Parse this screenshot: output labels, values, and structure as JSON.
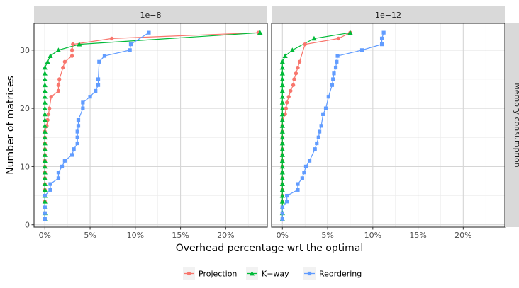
{
  "chart_data": {
    "type": "line",
    "xlabel": "Overhead percentage wrt the optimal",
    "ylabel": "Number of matrices",
    "row_strip": "Memory consumption",
    "xlim": [
      -1.2,
      24.6
    ],
    "ylim": [
      -0.4,
      34.6
    ],
    "x_ticks": [
      0,
      5,
      10,
      15,
      20
    ],
    "x_tick_labels": [
      "0%",
      "5%",
      "10%",
      "15%",
      "20%"
    ],
    "y_ticks": [
      0,
      10,
      20,
      30
    ],
    "y_tick_labels": [
      "0",
      "10",
      "20",
      "30"
    ],
    "grid": true,
    "legend_position": "bottom",
    "colors": {
      "Projection": "#F8766D",
      "K-way": "#00BA38",
      "Reordering": "#619CFF"
    },
    "legend": [
      {
        "name": "Projection",
        "marker": "circle"
      },
      {
        "name": "K−way",
        "marker": "triangle"
      },
      {
        "name": "Reordering",
        "marker": "square"
      }
    ],
    "panels": [
      {
        "label": "1e−8",
        "series": [
          {
            "name": "Projection",
            "x": [
              0,
              0,
              0,
              0,
              0,
              0,
              0,
              0,
              0,
              0,
              0,
              0,
              0,
              0,
              0,
              0,
              0.2,
              0.3,
              0.4,
              0.5,
              0.7,
              1.5,
              1.5,
              1.6,
              2.0,
              2.2,
              3.0,
              3.0,
              3.1,
              7.4,
              23.6
            ],
            "y": [
              1,
              2,
              3,
              4,
              5,
              6,
              7,
              8,
              9,
              10,
              11,
              12,
              13,
              14,
              15,
              16,
              17,
              18,
              19,
              20,
              22,
              23,
              24,
              25,
              27,
              28,
              29,
              30,
              31,
              32,
              33
            ]
          },
          {
            "name": "K-way",
            "x": [
              0,
              0,
              0,
              0,
              0,
              0,
              0,
              0,
              0,
              0,
              0,
              0,
              0,
              0,
              0,
              0,
              0,
              0,
              0,
              0,
              0,
              0,
              0,
              0,
              0,
              0,
              0,
              0.3,
              0.6,
              1.5,
              3.8,
              23.8
            ],
            "y": [
              1,
              2,
              3,
              4,
              5,
              6,
              7,
              8,
              9,
              10,
              11,
              12,
              13,
              14,
              15,
              16,
              17,
              18,
              19,
              20,
              21,
              22,
              23,
              24,
              25,
              26,
              27,
              28,
              29,
              30,
              31,
              33
            ]
          },
          {
            "name": "Reordering",
            "x": [
              0,
              0,
              0,
              0,
              0.6,
              0.6,
              1.5,
              1.5,
              1.9,
              2.2,
              3.0,
              3.2,
              3.6,
              3.6,
              3.6,
              3.7,
              3.7,
              4.2,
              4.2,
              5.0,
              5.6,
              5.9,
              5.9,
              6.0,
              6.6,
              9.4,
              9.5,
              11.5
            ],
            "y": [
              1,
              2,
              3,
              5,
              6,
              7,
              8,
              9,
              10,
              11,
              12,
              13,
              14,
              15,
              16,
              17,
              18,
              20,
              21,
              22,
              23,
              24,
              25,
              28,
              29,
              30,
              31,
              33
            ]
          }
        ]
      },
      {
        "label": "1e−12",
        "series": [
          {
            "name": "Projection",
            "x": [
              0,
              0,
              0,
              0,
              0,
              0,
              0,
              0,
              0,
              0,
              0,
              0,
              0,
              0,
              0,
              0,
              0,
              0,
              0.3,
              0.4,
              0.5,
              0.7,
              0.9,
              1.2,
              1.3,
              1.5,
              1.7,
              1.9,
              2.5,
              6.2,
              7.5
            ],
            "y": [
              1,
              2,
              3,
              4,
              5,
              6,
              7,
              8,
              9,
              10,
              11,
              12,
              13,
              14,
              15,
              16,
              17,
              18,
              19,
              20,
              21,
              22,
              23,
              24,
              25,
              26,
              27,
              28,
              31,
              32,
              33
            ]
          },
          {
            "name": "K-way",
            "x": [
              0,
              0,
              0,
              0,
              0,
              0,
              0,
              0,
              0,
              0,
              0,
              0,
              0,
              0,
              0,
              0,
              0,
              0,
              0,
              0,
              0,
              0,
              0,
              0,
              0,
              0,
              0,
              0,
              0.3,
              1.1,
              3.5,
              7.5
            ],
            "y": [
              1,
              2,
              3,
              4,
              5,
              6,
              7,
              8,
              9,
              10,
              11,
              12,
              13,
              14,
              15,
              16,
              17,
              18,
              19,
              20,
              21,
              22,
              23,
              24,
              25,
              26,
              27,
              28,
              29,
              30,
              32,
              33
            ]
          },
          {
            "name": "Reordering",
            "x": [
              0,
              0,
              0,
              0.5,
              0.5,
              1.7,
              1.7,
              2.2,
              2.4,
              2.6,
              3.0,
              3.6,
              3.8,
              4.0,
              4.1,
              4.3,
              4.5,
              4.8,
              5.1,
              5.5,
              5.6,
              5.7,
              5.9,
              6.0,
              6.1,
              8.8,
              11.0,
              11.0,
              11.2
            ],
            "y": [
              1,
              2,
              3,
              4,
              5,
              6,
              7,
              8,
              9,
              10,
              11,
              13,
              14,
              15,
              16,
              17,
              19,
              20,
              22,
              24,
              25,
              26,
              27,
              28,
              29,
              30,
              31,
              32,
              33
            ]
          }
        ]
      }
    ]
  }
}
